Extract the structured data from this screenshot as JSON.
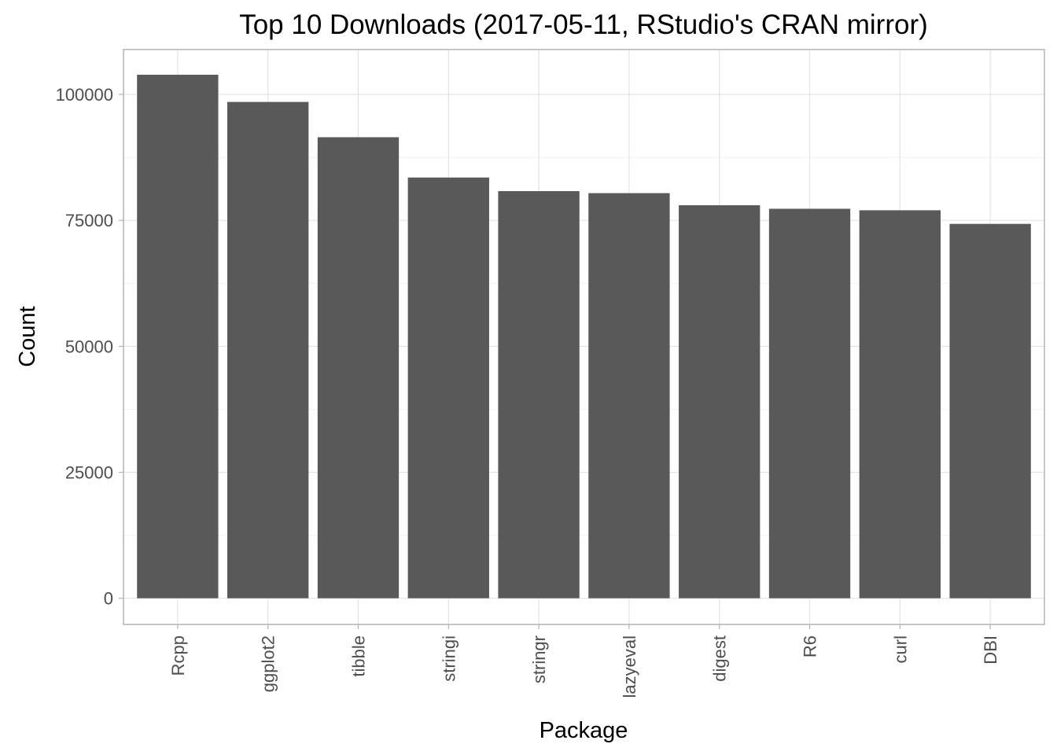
{
  "chart_data": {
    "type": "bar",
    "title": "Top 10 Downloads (2017-05-11, RStudio's CRAN mirror)",
    "xlabel": "Package",
    "ylabel": "Count",
    "categories": [
      "Rcpp",
      "ggplot2",
      "tibble",
      "stringi",
      "stringr",
      "lazyeval",
      "digest",
      "R6",
      "curl",
      "DBI"
    ],
    "values": [
      103900,
      98500,
      91500,
      83500,
      80800,
      80400,
      78000,
      77300,
      77000,
      74300
    ],
    "ylim": [
      -5200,
      108900
    ],
    "yticks": [
      0,
      25000,
      50000,
      75000,
      100000
    ],
    "ytick_labels": [
      "0",
      "25000",
      "50000",
      "75000",
      "100000"
    ],
    "grid": true,
    "legend": "none",
    "colors": {
      "bar": "#595959",
      "panel_border": "#b3b3b3",
      "grid_major": "#e3e3e3",
      "grid_minor": "#f2f2f2",
      "tick": "#b3b3b3"
    }
  }
}
